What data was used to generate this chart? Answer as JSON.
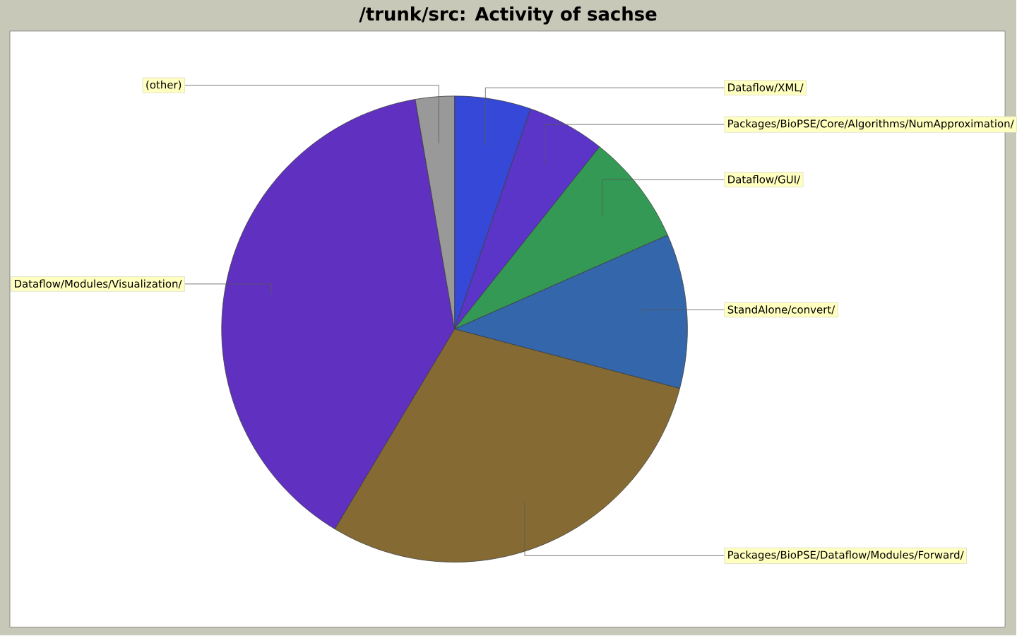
{
  "chart_data": {
    "type": "pie",
    "title": "/trunk/src: Activity of sachse",
    "categories": [
      "Dataflow/XML/",
      "Packages/BioPSE/Core/Algorithms/NumApproximation/",
      "Dataflow/GUI/",
      "StandAlone/convert/",
      "Packages/BioPSE/Dataflow/Modules/Forward/",
      "Dataflow/Modules/Visualization/",
      "(other)"
    ],
    "values": [
      5.3,
      5.4,
      7.7,
      10.7,
      29.5,
      38.7,
      2.7
    ],
    "colors": [
      "#3548d8",
      "#5a35c8",
      "#339955",
      "#3366aa",
      "#856b33",
      "#6030c0",
      "#999999"
    ]
  }
}
